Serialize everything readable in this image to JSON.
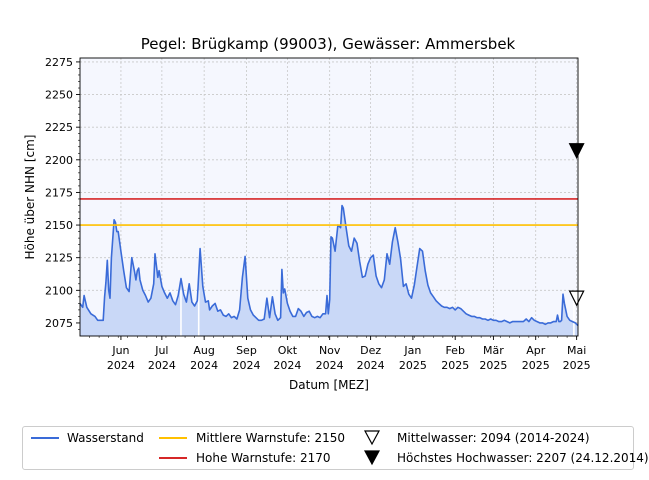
{
  "chart_data": {
    "type": "area",
    "title": "Pegel:  Brügkamp (99003), Gewässer:  Ammersbek",
    "xlabel": "Datum [MEZ]",
    "ylabel": "Höhe über NHN [cm]",
    "ylim": [
      2065,
      2278
    ],
    "xlim": [
      "2024-05-02",
      "2025-05-02"
    ],
    "grid": true,
    "legend_position": "bottom",
    "y_ticks": [
      2075,
      2100,
      2125,
      2150,
      2175,
      2200,
      2225,
      2250,
      2275
    ],
    "x_ticks": [
      {
        "date": "2024-06-01",
        "label": [
          "Jun",
          "2024"
        ]
      },
      {
        "date": "2024-07-01",
        "label": [
          "Jul",
          "2024"
        ]
      },
      {
        "date": "2024-08-01",
        "label": [
          "Aug",
          "2024"
        ]
      },
      {
        "date": "2024-09-01",
        "label": [
          "Sep",
          "2024"
        ]
      },
      {
        "date": "2024-10-01",
        "label": [
          "Okt",
          "2024"
        ]
      },
      {
        "date": "2024-11-01",
        "label": [
          "Nov",
          "2024"
        ]
      },
      {
        "date": "2024-12-01",
        "label": [
          "Dez",
          "2024"
        ]
      },
      {
        "date": "2025-01-01",
        "label": [
          "Jan",
          "2025"
        ]
      },
      {
        "date": "2025-02-01",
        "label": [
          "Feb",
          "2025"
        ]
      },
      {
        "date": "2025-03-01",
        "label": [
          "Mär",
          "2025"
        ]
      },
      {
        "date": "2025-04-01",
        "label": [
          "Apr",
          "2025"
        ]
      },
      {
        "date": "2025-05-01",
        "label": [
          "Mai",
          "2025"
        ]
      }
    ],
    "series": [
      {
        "name": "Wasserstand",
        "color": "#3a6bd8",
        "fill": "#c9d8f7",
        "points": [
          [
            "2024-05-02",
            2090
          ],
          [
            "2024-05-04",
            2087
          ],
          [
            "2024-05-05",
            2096
          ],
          [
            "2024-05-07",
            2087
          ],
          [
            "2024-05-10",
            2082
          ],
          [
            "2024-05-13",
            2080
          ],
          [
            "2024-05-15",
            2077
          ],
          [
            "2024-05-19",
            2077
          ],
          [
            "2024-05-20",
            2095
          ],
          [
            "2024-05-21",
            2106
          ],
          [
            "2024-05-22",
            2123
          ],
          [
            "2024-05-23",
            2100
          ],
          [
            "2024-05-24",
            2094
          ],
          [
            "2024-05-25",
            2125
          ],
          [
            "2024-05-27",
            2154
          ],
          [
            "2024-05-28",
            2152
          ],
          [
            "2024-05-29",
            2145
          ],
          [
            "2024-05-30",
            2145
          ],
          [
            "2024-06-01",
            2130
          ],
          [
            "2024-06-03",
            2115
          ],
          [
            "2024-06-05",
            2102
          ],
          [
            "2024-06-07",
            2099
          ],
          [
            "2024-06-09",
            2125
          ],
          [
            "2024-06-11",
            2114
          ],
          [
            "2024-06-12",
            2108
          ],
          [
            "2024-06-13",
            2115
          ],
          [
            "2024-06-14",
            2117
          ],
          [
            "2024-06-15",
            2108
          ],
          [
            "2024-06-17",
            2100
          ],
          [
            "2024-06-19",
            2096
          ],
          [
            "2024-06-21",
            2091
          ],
          [
            "2024-06-23",
            2094
          ],
          [
            "2024-06-25",
            2105
          ],
          [
            "2024-06-26",
            2128
          ],
          [
            "2024-06-28",
            2110
          ],
          [
            "2024-06-29",
            2115
          ],
          [
            "2024-07-01",
            2103
          ],
          [
            "2024-07-03",
            2098
          ],
          [
            "2024-07-05",
            2094
          ],
          [
            "2024-07-07",
            2098
          ],
          [
            "2024-07-09",
            2092
          ],
          [
            "2024-07-11",
            2089
          ],
          [
            "2024-07-13",
            2096
          ],
          [
            "2024-07-15",
            2109
          ],
          [
            "2024-07-17",
            2097
          ],
          [
            "2024-07-19",
            2091
          ],
          [
            "2024-07-21",
            2105
          ],
          [
            "2024-07-23",
            2091
          ],
          [
            "2024-07-25",
            2088
          ],
          [
            "2024-07-27",
            2092
          ],
          [
            "2024-07-29",
            2132
          ],
          [
            "2024-07-31",
            2103
          ],
          [
            "2024-08-02",
            2091
          ],
          [
            "2024-08-04",
            2092
          ],
          [
            "2024-08-05",
            2085
          ],
          [
            "2024-08-07",
            2088
          ],
          [
            "2024-08-09",
            2090
          ],
          [
            "2024-08-11",
            2084
          ],
          [
            "2024-08-13",
            2085
          ],
          [
            "2024-08-15",
            2081
          ],
          [
            "2024-08-17",
            2080
          ],
          [
            "2024-08-19",
            2082
          ],
          [
            "2024-08-21",
            2079
          ],
          [
            "2024-08-23",
            2080
          ],
          [
            "2024-08-25",
            2078
          ],
          [
            "2024-08-27",
            2085
          ],
          [
            "2024-08-29",
            2110
          ],
          [
            "2024-08-31",
            2126
          ],
          [
            "2024-09-02",
            2094
          ],
          [
            "2024-09-04",
            2085
          ],
          [
            "2024-09-06",
            2081
          ],
          [
            "2024-09-08",
            2079
          ],
          [
            "2024-09-10",
            2077
          ],
          [
            "2024-09-12",
            2077
          ],
          [
            "2024-09-14",
            2078
          ],
          [
            "2024-09-16",
            2094
          ],
          [
            "2024-09-18",
            2079
          ],
          [
            "2024-09-20",
            2095
          ],
          [
            "2024-09-22",
            2082
          ],
          [
            "2024-09-24",
            2077
          ],
          [
            "2024-09-26",
            2079
          ],
          [
            "2024-09-27",
            2116
          ],
          [
            "2024-09-28",
            2098
          ],
          [
            "2024-09-29",
            2101
          ],
          [
            "2024-10-01",
            2090
          ],
          [
            "2024-10-03",
            2084
          ],
          [
            "2024-10-05",
            2080
          ],
          [
            "2024-10-07",
            2080
          ],
          [
            "2024-10-09",
            2086
          ],
          [
            "2024-10-11",
            2084
          ],
          [
            "2024-10-13",
            2080
          ],
          [
            "2024-10-15",
            2083
          ],
          [
            "2024-10-17",
            2084
          ],
          [
            "2024-10-19",
            2080
          ],
          [
            "2024-10-21",
            2079
          ],
          [
            "2024-10-23",
            2080
          ],
          [
            "2024-10-25",
            2079
          ],
          [
            "2024-10-27",
            2082
          ],
          [
            "2024-10-29",
            2082
          ],
          [
            "2024-10-30",
            2096
          ],
          [
            "2024-10-31",
            2082
          ],
          [
            "2024-11-01",
            2093
          ],
          [
            "2024-11-02",
            2141
          ],
          [
            "2024-11-03",
            2140
          ],
          [
            "2024-11-05",
            2130
          ],
          [
            "2024-11-07",
            2150
          ],
          [
            "2024-11-09",
            2148
          ],
          [
            "2024-11-10",
            2165
          ],
          [
            "2024-11-11",
            2163
          ],
          [
            "2024-11-13",
            2148
          ],
          [
            "2024-11-15",
            2134
          ],
          [
            "2024-11-17",
            2130
          ],
          [
            "2024-11-19",
            2140
          ],
          [
            "2024-11-21",
            2136
          ],
          [
            "2024-11-23",
            2122
          ],
          [
            "2024-11-25",
            2110
          ],
          [
            "2024-11-27",
            2111
          ],
          [
            "2024-11-29",
            2120
          ],
          [
            "2024-12-01",
            2125
          ],
          [
            "2024-12-03",
            2127
          ],
          [
            "2024-12-05",
            2111
          ],
          [
            "2024-12-07",
            2105
          ],
          [
            "2024-12-09",
            2102
          ],
          [
            "2024-12-11",
            2108
          ],
          [
            "2024-12-13",
            2128
          ],
          [
            "2024-12-15",
            2120
          ],
          [
            "2024-12-17",
            2137
          ],
          [
            "2024-12-19",
            2148
          ],
          [
            "2024-12-21",
            2137
          ],
          [
            "2024-12-23",
            2124
          ],
          [
            "2024-12-25",
            2103
          ],
          [
            "2024-12-27",
            2105
          ],
          [
            "2024-12-29",
            2097
          ],
          [
            "2024-12-31",
            2094
          ],
          [
            "2025-01-02",
            2104
          ],
          [
            "2025-01-04",
            2118
          ],
          [
            "2025-01-06",
            2132
          ],
          [
            "2025-01-08",
            2130
          ],
          [
            "2025-01-10",
            2115
          ],
          [
            "2025-01-12",
            2104
          ],
          [
            "2025-01-14",
            2098
          ],
          [
            "2025-01-16",
            2095
          ],
          [
            "2025-01-18",
            2092
          ],
          [
            "2025-01-20",
            2090
          ],
          [
            "2025-01-22",
            2088
          ],
          [
            "2025-01-24",
            2087
          ],
          [
            "2025-01-26",
            2087
          ],
          [
            "2025-01-28",
            2086
          ],
          [
            "2025-01-30",
            2087
          ],
          [
            "2025-02-01",
            2085
          ],
          [
            "2025-02-03",
            2087
          ],
          [
            "2025-02-05",
            2086
          ],
          [
            "2025-02-07",
            2084
          ],
          [
            "2025-02-09",
            2082
          ],
          [
            "2025-02-11",
            2081
          ],
          [
            "2025-02-13",
            2080
          ],
          [
            "2025-02-15",
            2080
          ],
          [
            "2025-02-17",
            2079
          ],
          [
            "2025-02-19",
            2079
          ],
          [
            "2025-02-21",
            2078
          ],
          [
            "2025-02-23",
            2078
          ],
          [
            "2025-02-25",
            2077
          ],
          [
            "2025-02-27",
            2078
          ],
          [
            "2025-03-01",
            2077
          ],
          [
            "2025-03-03",
            2077
          ],
          [
            "2025-03-05",
            2076
          ],
          [
            "2025-03-07",
            2076
          ],
          [
            "2025-03-09",
            2077
          ],
          [
            "2025-03-11",
            2076
          ],
          [
            "2025-03-13",
            2075
          ],
          [
            "2025-03-15",
            2076
          ],
          [
            "2025-03-17",
            2076
          ],
          [
            "2025-03-19",
            2076
          ],
          [
            "2025-03-21",
            2076
          ],
          [
            "2025-03-23",
            2076
          ],
          [
            "2025-03-25",
            2078
          ],
          [
            "2025-03-27",
            2076
          ],
          [
            "2025-03-29",
            2079
          ],
          [
            "2025-03-31",
            2077
          ],
          [
            "2025-04-02",
            2076
          ],
          [
            "2025-04-04",
            2075
          ],
          [
            "2025-04-06",
            2075
          ],
          [
            "2025-04-08",
            2074
          ],
          [
            "2025-04-10",
            2075
          ],
          [
            "2025-04-12",
            2075
          ],
          [
            "2025-04-14",
            2076
          ],
          [
            "2025-04-16",
            2076
          ],
          [
            "2025-04-17",
            2081
          ],
          [
            "2025-04-18",
            2076
          ],
          [
            "2025-04-19",
            2076
          ],
          [
            "2025-04-20",
            2077
          ],
          [
            "2025-04-21",
            2097
          ],
          [
            "2025-04-22",
            2090
          ],
          [
            "2025-04-24",
            2080
          ],
          [
            "2025-04-26",
            2077
          ],
          [
            "2025-04-28",
            2076
          ],
          [
            "2025-04-30",
            2075
          ],
          [
            "2025-05-02",
            2073
          ]
        ]
      }
    ],
    "thresholds": [
      {
        "name": "Mittlere Warnstufe: 2150",
        "value": 2150,
        "color": "#ffc000"
      },
      {
        "name": "Hohe Warnstufe: 2170",
        "value": 2170,
        "color": "#d62728"
      }
    ],
    "markers": [
      {
        "name": "Mittelwasser: 2094 (2014-2024)",
        "value": 2094,
        "date": "2025-05-01",
        "style": "open-triangle-down"
      },
      {
        "name": "Höchstes Hochwasser: 2207 (24.12.2014)",
        "value": 2207,
        "date": "2025-05-01",
        "style": "filled-triangle-down"
      }
    ],
    "gaps": [
      "2024-07-15",
      "2024-07-28",
      "2025-04-29"
    ]
  }
}
